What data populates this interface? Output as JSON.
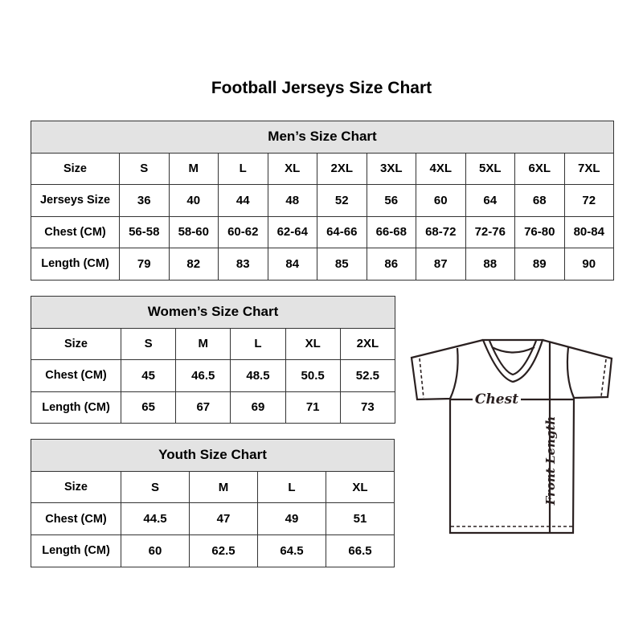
{
  "title": "Football Jerseys Size Chart",
  "men": {
    "caption": "Men’s Size Chart",
    "rows": [
      [
        "Size",
        "S",
        "M",
        "L",
        "XL",
        "2XL",
        "3XL",
        "4XL",
        "5XL",
        "6XL",
        "7XL"
      ],
      [
        "Jerseys Size",
        "36",
        "40",
        "44",
        "48",
        "52",
        "56",
        "60",
        "64",
        "68",
        "72"
      ],
      [
        "Chest (CM)",
        "56-58",
        "58-60",
        "60-62",
        "62-64",
        "64-66",
        "66-68",
        "68-72",
        "72-76",
        "76-80",
        "80-84"
      ],
      [
        "Length (CM)",
        "79",
        "82",
        "83",
        "84",
        "85",
        "86",
        "87",
        "88",
        "89",
        "90"
      ]
    ]
  },
  "women": {
    "caption": "Women’s Size Chart",
    "rows": [
      [
        "Size",
        "S",
        "M",
        "L",
        "XL",
        "2XL"
      ],
      [
        "Chest (CM)",
        "45",
        "46.5",
        "48.5",
        "50.5",
        "52.5"
      ],
      [
        "Length (CM)",
        "65",
        "67",
        "69",
        "71",
        "73"
      ]
    ]
  },
  "youth": {
    "caption": "Youth Size Chart",
    "rows": [
      [
        "Size",
        "S",
        "M",
        "L",
        "XL"
      ],
      [
        "Chest (CM)",
        "44.5",
        "47",
        "49",
        "51"
      ],
      [
        "Length (CM)",
        "60",
        "62.5",
        "64.5",
        "66.5"
      ]
    ]
  },
  "diagram": {
    "chest_label": "Chest",
    "length_label": "Front Length",
    "icon": "tshirt-icon"
  }
}
